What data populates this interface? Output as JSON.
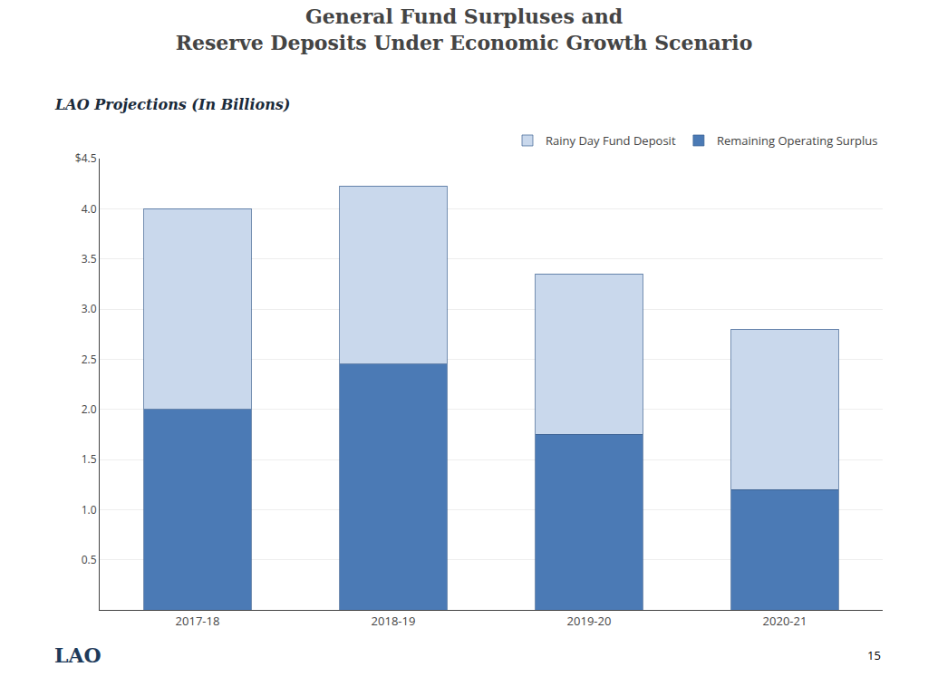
{
  "chart_data": {
    "type": "bar",
    "title": "General Fund Surpluses and\nReserve Deposits Under Economic Growth Scenario",
    "subtitle": "LAO Projections (In Billions)",
    "categories": [
      "2017-18",
      "2018-19",
      "2019-20",
      "2020-21"
    ],
    "series": [
      {
        "name": "Remaining Operating Surplus",
        "color": "#4b7ab5",
        "values": [
          2.0,
          2.45,
          1.75,
          1.2
        ]
      },
      {
        "name": "Rainy Day Fund Deposit",
        "color": "#c9d8ec",
        "values": [
          2.0,
          1.775,
          1.6,
          1.6
        ]
      }
    ],
    "stacked": true,
    "ylim": [
      0,
      4.5
    ],
    "yticks": [
      0.5,
      {
        "value": 1,
        "label": "1.0"
      },
      1.5,
      {
        "value": 2,
        "label": "2.0"
      },
      2.5,
      {
        "value": 3,
        "label": "3.0"
      },
      3.5,
      {
        "value": 4,
        "label": "4.0"
      },
      {
        "value": 4.5,
        "label": "$4.5"
      }
    ],
    "grid": true,
    "legend": "upper right",
    "annotations": [
      "LAO",
      "15"
    ]
  }
}
